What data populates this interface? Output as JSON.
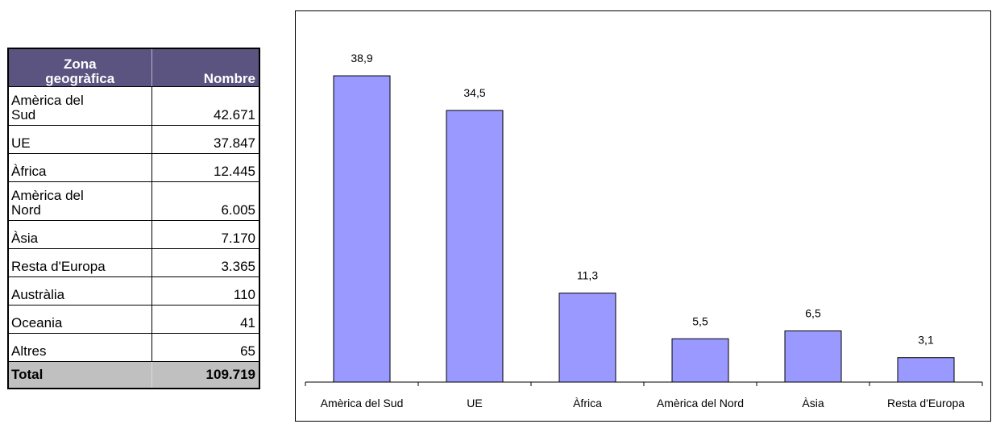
{
  "table": {
    "headers": {
      "zone_line1": "Zona",
      "zone_line2": "geogràfica",
      "count": "Nombre"
    },
    "rows": [
      {
        "zone_line1": "Amèrica del",
        "zone_line2": "Sud",
        "count": "42.671"
      },
      {
        "zone_line1": "UE",
        "zone_line2": "",
        "count": "37.847"
      },
      {
        "zone_line1": "Àfrica",
        "zone_line2": "",
        "count": "12.445"
      },
      {
        "zone_line1": "Amèrica del",
        "zone_line2": "Nord",
        "count": "6.005"
      },
      {
        "zone_line1": "Àsia",
        "zone_line2": "",
        "count": "7.170"
      },
      {
        "zone_line1": "Resta d'Europa",
        "zone_line2": "",
        "count": "3.365"
      },
      {
        "zone_line1": "Austràlia",
        "zone_line2": "",
        "count": "110"
      },
      {
        "zone_line1": "Oceania",
        "zone_line2": "",
        "count": "41"
      },
      {
        "zone_line1": "Altres",
        "zone_line2": "",
        "count": "65"
      }
    ],
    "total": {
      "label": "Total",
      "count": "109.719"
    }
  },
  "chart_data": {
    "type": "bar",
    "categories": [
      "Amèrica del Sud",
      "UE",
      "Àfrica",
      "Amèrica del Nord",
      "Àsia",
      "Resta d'Europa"
    ],
    "values": [
      38.9,
      34.5,
      11.3,
      5.5,
      6.5,
      3.1
    ],
    "value_labels": [
      "38,9",
      "34,5",
      "11,3",
      "5,5",
      "6,5",
      "3,1"
    ],
    "title": "",
    "xlabel": "",
    "ylabel": "",
    "ylim": [
      0,
      43
    ],
    "grid": false,
    "legend": "none",
    "bar_color": "#9999ff"
  }
}
